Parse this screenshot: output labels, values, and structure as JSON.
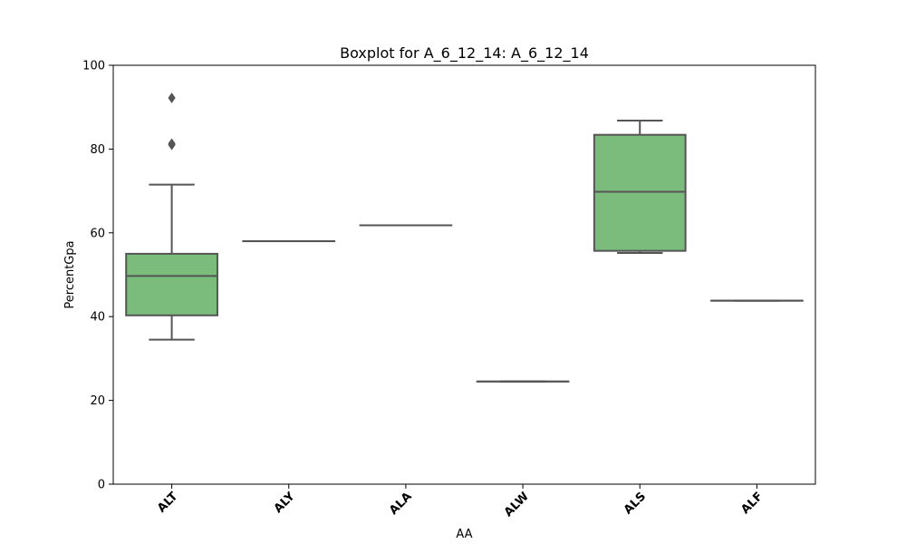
{
  "chart_data": {
    "type": "box",
    "title": "Boxplot for A_6_12_14: A_6_12_14",
    "xlabel": "AA",
    "ylabel": "PercentGpa",
    "ylim": [
      0,
      100
    ],
    "yticks": [
      0,
      20,
      40,
      60,
      80,
      100
    ],
    "grid": false,
    "box_color": "#7bbb7b",
    "line_color": "#555555",
    "categories": [
      "ALT",
      "ALY",
      "ALA",
      "ALW",
      "ALS",
      "ALF"
    ],
    "boxes": [
      {
        "category": "ALT",
        "whisker_low": 34.5,
        "q1": 40.3,
        "median": 49.7,
        "q3": 55.0,
        "whisker_high": 71.5,
        "outliers": [
          81.0,
          81.3,
          92.2
        ]
      },
      {
        "category": "ALY",
        "whisker_low": 58.0,
        "q1": 58.0,
        "median": 58.0,
        "q3": 58.0,
        "whisker_high": 58.0,
        "outliers": []
      },
      {
        "category": "ALA",
        "whisker_low": 61.8,
        "q1": 61.8,
        "median": 61.8,
        "q3": 61.8,
        "whisker_high": 61.8,
        "outliers": []
      },
      {
        "category": "ALW",
        "whisker_low": 24.5,
        "q1": 24.5,
        "median": 24.5,
        "q3": 24.5,
        "whisker_high": 24.5,
        "outliers": []
      },
      {
        "category": "ALS",
        "whisker_low": 55.2,
        "q1": 55.7,
        "median": 69.8,
        "q3": 83.4,
        "whisker_high": 86.8,
        "outliers": []
      },
      {
        "category": "ALF",
        "whisker_low": 43.8,
        "q1": 43.8,
        "median": 43.8,
        "q3": 43.8,
        "whisker_high": 43.8,
        "outliers": []
      }
    ]
  }
}
